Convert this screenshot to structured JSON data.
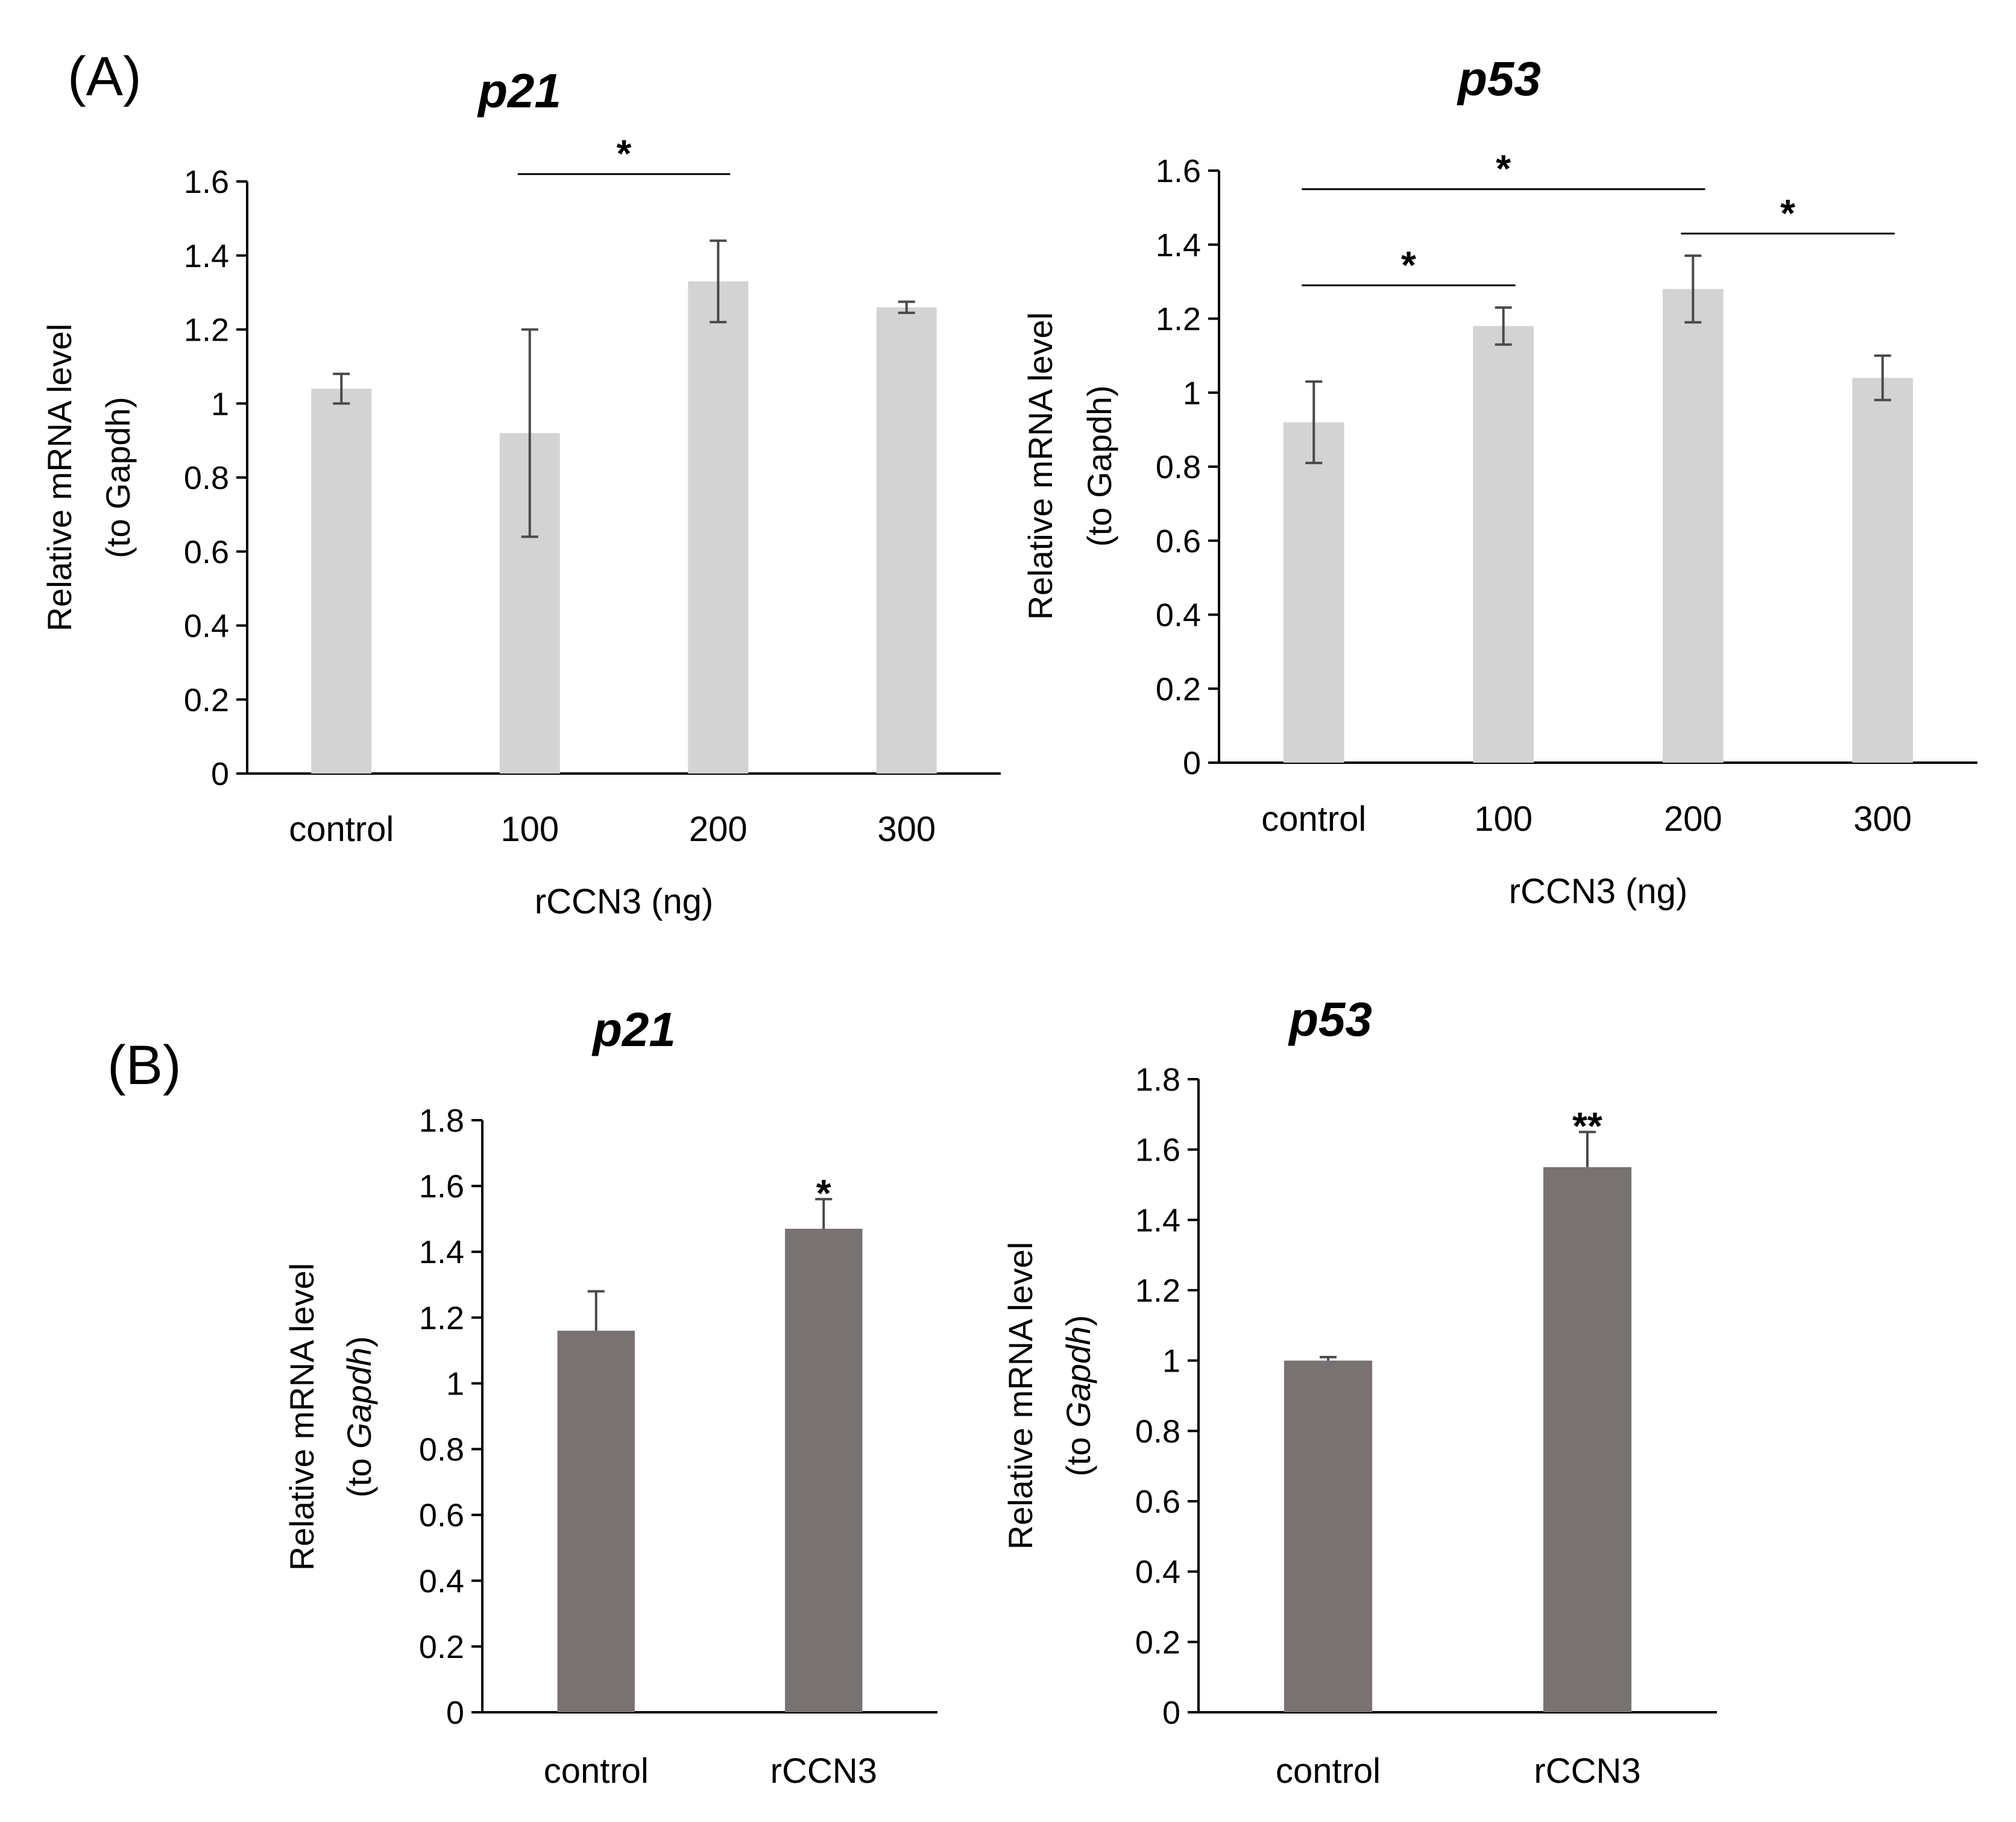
{
  "panels": {
    "A_label": "(A)",
    "B_label": "(B)"
  },
  "chart_data": [
    {
      "id": "A-p21",
      "panel": "A",
      "type": "bar",
      "title": "p21",
      "xlabel": "rCCN3 (ng)",
      "ylabel_line1": "Relative mRNA level",
      "ylabel_line2": "(to Gapdh)",
      "ylabel_italic_part": "",
      "categories": [
        "control",
        "100",
        "200",
        "300"
      ],
      "values": [
        1.04,
        0.92,
        1.33,
        1.26
      ],
      "errors": [
        0.04,
        0.28,
        0.11,
        0.015
      ],
      "ylim": [
        0,
        1.6
      ],
      "yticks": [
        0,
        0.2,
        0.4,
        0.6,
        0.8,
        1,
        1.2,
        1.4,
        1.6
      ],
      "yticklabels": [
        "0",
        "0.2",
        "0.4",
        "0.6",
        "0.8",
        "1",
        "1.2",
        "1.4",
        "1.6"
      ],
      "bar_color": "#d3d3d3",
      "significance": [
        {
          "from": 1,
          "to": 2,
          "y": 1.62,
          "label": "*"
        }
      ],
      "bar_stars": []
    },
    {
      "id": "A-p53",
      "panel": "A",
      "type": "bar",
      "title": "p53",
      "xlabel": "rCCN3 (ng)",
      "ylabel_line1": "Relative mRNA level",
      "ylabel_line2": "(to Gapdh)",
      "ylabel_italic_part": "",
      "categories": [
        "control",
        "100",
        "200",
        "300"
      ],
      "values": [
        0.92,
        1.18,
        1.28,
        1.04
      ],
      "errors": [
        0.11,
        0.05,
        0.09,
        0.06
      ],
      "ylim": [
        0,
        1.6
      ],
      "yticks": [
        0,
        0.2,
        0.4,
        0.6,
        0.8,
        1,
        1.2,
        1.4,
        1.6
      ],
      "yticklabels": [
        "0",
        "0.2",
        "0.4",
        "0.6",
        "0.8",
        "1",
        "1.2",
        "1.4",
        "1.6"
      ],
      "bar_color": "#d3d3d3",
      "significance": [
        {
          "from": 0,
          "to": 2,
          "y": 1.55,
          "label": "*"
        },
        {
          "from": 0,
          "to": 1,
          "y": 1.29,
          "label": "*"
        },
        {
          "from": 2,
          "to": 3,
          "y": 1.43,
          "label": "*"
        }
      ],
      "bar_stars": []
    },
    {
      "id": "B-p21",
      "panel": "B",
      "type": "bar",
      "title": "p21",
      "xlabel": "",
      "ylabel_line1": "Relative mRNA level",
      "ylabel_line2": "(to ",
      "ylabel_italic_part": "Gapdh",
      "ylabel_close": ")",
      "categories": [
        "control",
        "rCCN3"
      ],
      "values": [
        1.16,
        1.47
      ],
      "errors": [
        0.12,
        0.09
      ],
      "ylim": [
        0,
        1.8
      ],
      "yticks": [
        0,
        0.2,
        0.4,
        0.6,
        0.8,
        1,
        1.2,
        1.4,
        1.6,
        1.8
      ],
      "yticklabels": [
        "0",
        "0.2",
        "0.4",
        "0.6",
        "0.8",
        "1",
        "1.2",
        "1.4",
        "1.6",
        "1.8"
      ],
      "bar_color": "#787372",
      "significance": [],
      "bar_stars": [
        {
          "index": 1,
          "label": "*"
        }
      ]
    },
    {
      "id": "B-p53",
      "panel": "B",
      "type": "bar",
      "title": "p53",
      "xlabel": "",
      "ylabel_line1": "Relative mRNA level",
      "ylabel_line2": "(to ",
      "ylabel_italic_part": "Gapdh",
      "ylabel_close": ")",
      "categories": [
        "control",
        "rCCN3"
      ],
      "values": [
        1.0,
        1.55
      ],
      "errors": [
        0.01,
        0.1
      ],
      "ylim": [
        0,
        1.8
      ],
      "yticks": [
        0,
        0.2,
        0.4,
        0.6,
        0.8,
        1,
        1.2,
        1.4,
        1.6,
        1.8
      ],
      "yticklabels": [
        "0",
        "0.2",
        "0.4",
        "0.6",
        "0.8",
        "1",
        "1.2",
        "1.4",
        "1.6",
        "1.8"
      ],
      "bar_color": "#787372",
      "significance": [],
      "bar_stars": [
        {
          "index": 1,
          "label": "**"
        }
      ]
    }
  ]
}
